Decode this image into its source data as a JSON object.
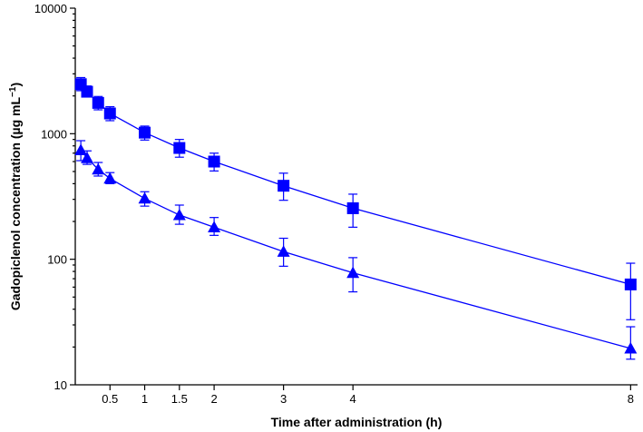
{
  "chart_data": {
    "type": "line",
    "title": "",
    "xlabel": "Time after administration (h)",
    "ylabel": {
      "main": "Gadopiclenol concentration (µg mL",
      "sup": "−1",
      "close": ")"
    },
    "x_scale": "linear",
    "y_scale": "log",
    "xlim": [
      0,
      8.1
    ],
    "ylim": [
      10,
      10000
    ],
    "x_ticks": [
      {
        "value": 0.5,
        "label": "0.5"
      },
      {
        "value": 1,
        "label": "1"
      },
      {
        "value": 1.5,
        "label": "1.5"
      },
      {
        "value": 2,
        "label": "2"
      },
      {
        "value": 3,
        "label": "3"
      },
      {
        "value": 4,
        "label": "4"
      },
      {
        "value": 8,
        "label": "8"
      }
    ],
    "y_ticks": [
      {
        "value": 10,
        "label": "10"
      },
      {
        "value": 100,
        "label": "100"
      },
      {
        "value": 1000,
        "label": "1000"
      },
      {
        "value": 10000,
        "label": "10000"
      }
    ],
    "grid": false,
    "series": [
      {
        "marker": "square",
        "color": "#0000ff",
        "x": [
          0.08,
          0.17,
          0.33,
          0.5,
          1,
          1.5,
          2,
          3,
          4,
          8
        ],
        "y": [
          2480,
          2160,
          1760,
          1450,
          1020,
          770,
          600,
          385,
          255,
          63
        ],
        "y_err_low": [
          2200,
          1960,
          1550,
          1270,
          890,
          650,
          505,
          295,
          180,
          33
        ],
        "y_err_high": [
          2800,
          2400,
          1980,
          1640,
          1150,
          900,
          700,
          485,
          330,
          93
        ]
      },
      {
        "marker": "triangle",
        "color": "#0000ff",
        "x": [
          0.08,
          0.17,
          0.33,
          0.5,
          1,
          1.5,
          2,
          3,
          4,
          8
        ],
        "y": [
          740,
          640,
          520,
          440,
          305,
          225,
          180,
          115,
          78,
          19.5
        ],
        "y_err_low": [
          610,
          570,
          460,
          400,
          265,
          190,
          155,
          88,
          55,
          16
        ],
        "y_err_high": [
          880,
          730,
          590,
          490,
          345,
          270,
          215,
          147,
          103,
          29
        ]
      }
    ]
  }
}
